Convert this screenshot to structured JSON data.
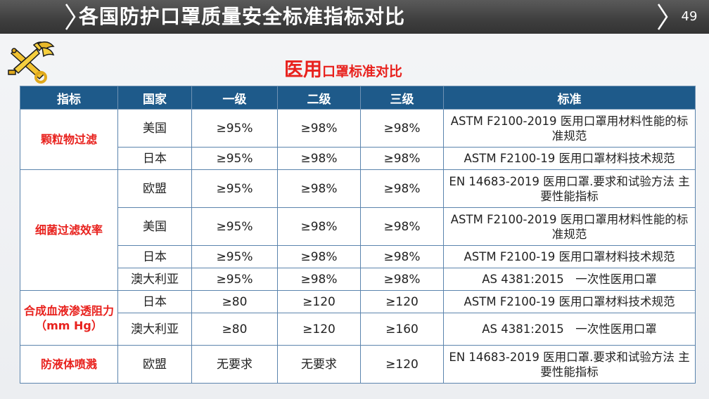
{
  "header": {
    "title": "各国防护口罩质量安全标准指标对比",
    "page_number": "49",
    "colors": {
      "bar": "#3e3e3e",
      "text": "#ffffff"
    }
  },
  "logo": {
    "icon": "customs-emblem-icon"
  },
  "subtitle": {
    "bold_part": "医用",
    "rest": "口罩标准对比",
    "color": "#e8211d"
  },
  "table": {
    "headers": [
      "指标",
      "国家",
      "一级",
      "二级",
      "三级",
      "标准"
    ],
    "header_color": "#1e5a8a",
    "groups": [
      {
        "indicator": "颗粒物过滤",
        "rows": [
          {
            "country": "美国",
            "l1": "≥95%",
            "l2": "≥98%",
            "l3": "≥98%",
            "standard": "ASTM F2100-2019 医用口罩用材料性能的标准规范"
          },
          {
            "country": "日本",
            "l1": "≥95%",
            "l2": "≥98%",
            "l3": "≥98%",
            "standard": "ASTM F2100-19 医用口罩材料技术规范"
          }
        ]
      },
      {
        "indicator": "细菌过滤效率",
        "rows": [
          {
            "country": "欧盟",
            "l1": "≥95%",
            "l2": "≥98%",
            "l3": "≥98%",
            "standard": "EN 14683-2019 医用口罩.要求和试验方法 主要性能指标"
          },
          {
            "country": "美国",
            "l1": "≥95%",
            "l2": "≥98%",
            "l3": "≥98%",
            "standard": "ASTM F2100-2019 医用口罩用材料性能的标准规范"
          },
          {
            "country": "日本",
            "l1": "≥95%",
            "l2": "≥98%",
            "l3": "≥98%",
            "standard": "ASTM F2100-19 医用口罩材料技术规范"
          },
          {
            "country": "澳大利亚",
            "l1": "≥95%",
            "l2": "≥98%",
            "l3": "≥98%",
            "standard": "AS 4381:2015　一次性医用口罩"
          }
        ]
      },
      {
        "indicator": "合成血液渗透阻力（mm Hg）",
        "rows": [
          {
            "country": "日本",
            "l1": "≥80",
            "l2": "≥120",
            "l3": "≥120",
            "standard": "ASTM F2100-19 医用口罩材料技术规范"
          },
          {
            "country": "澳大利亚",
            "l1": "≥80",
            "l2": "≥120",
            "l3": "≥160",
            "standard": "AS 4381:2015　一次性医用口罩"
          }
        ]
      },
      {
        "indicator": "防液体喷溅",
        "rows": [
          {
            "country": "欧盟",
            "l1": "无要求",
            "l2": "无要求",
            "l3": "≥120",
            "standard": "EN 14683-2019 医用口罩.要求和试验方法 主要性能指标"
          }
        ]
      }
    ]
  }
}
